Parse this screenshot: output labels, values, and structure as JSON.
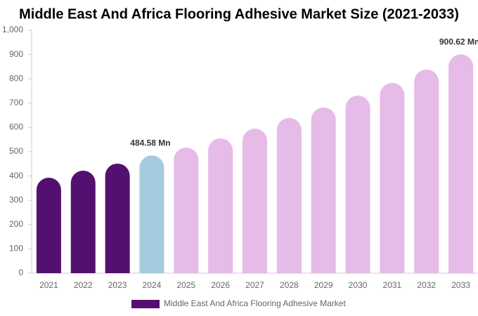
{
  "chart_data": {
    "type": "bar",
    "title": "Middle East And Africa Flooring Adhesive Market Size (2021-2033)",
    "categories": [
      "2021",
      "2022",
      "2023",
      "2024",
      "2025",
      "2026",
      "2027",
      "2028",
      "2029",
      "2030",
      "2031",
      "2032",
      "2033"
    ],
    "series": [
      {
        "name": "Middle East And Africa Flooring Adhesive Market",
        "color": "#541070",
        "values": [
          393,
          422,
          451,
          484.58,
          517,
          555,
          595,
          639,
          682,
          731,
          783,
          838,
          900.62
        ],
        "value_labels": [
          null,
          null,
          null,
          "484.58 Mn",
          null,
          null,
          null,
          null,
          null,
          null,
          null,
          null,
          "900.62 Mn"
        ],
        "colors": [
          "#541070",
          "#541070",
          "#541070",
          "#a5cbe0",
          "#e6bbe8",
          "#e6bbe8",
          "#e6bbe8",
          "#e6bbe8",
          "#e6bbe8",
          "#e6bbe8",
          "#e6bbe8",
          "#e6bbe8",
          "#e6bbe8"
        ]
      }
    ],
    "ylim": [
      0,
      1000
    ],
    "yticks": [
      0,
      100,
      200,
      300,
      400,
      500,
      600,
      700,
      800,
      900,
      {
        "value": 1000,
        "label": "1,000"
      }
    ],
    "legend": "bottom"
  }
}
